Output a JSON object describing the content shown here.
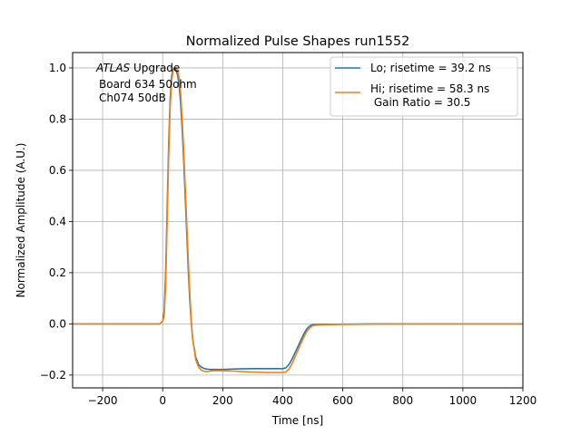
{
  "chart_data": {
    "type": "line",
    "title": "Normalized Pulse Shapes run1552",
    "xlabel": "Time [ns]",
    "ylabel": "Normalized Amplitude (A.U.)",
    "xlim": [
      -300,
      1200
    ],
    "ylim": [
      -0.25,
      1.06
    ],
    "xticks": [
      -200,
      0,
      200,
      400,
      600,
      800,
      1000,
      1200
    ],
    "xtick_labels": [
      "−200",
      "0",
      "200",
      "400",
      "600",
      "800",
      "1000",
      "1200"
    ],
    "yticks": [
      -0.2,
      0.0,
      0.2,
      0.4,
      0.6,
      0.8,
      1.0
    ],
    "ytick_labels": [
      "−0.2",
      "0.0",
      "0.2",
      "0.4",
      "0.6",
      "0.8",
      "1.0"
    ],
    "grid": true,
    "legend_position": "top-right",
    "annotation": {
      "atlas": "ATLAS",
      "upgrade": " Upgrade",
      "line2": "Board 634 50ohm",
      "line3": "Ch074 50dB"
    },
    "series": [
      {
        "name": "Lo; risetime = 39.2 ns",
        "color": "#1f77b4",
        "x": [
          -300,
          -10,
          0,
          5,
          10,
          15,
          20,
          25,
          30,
          35,
          40,
          45,
          50,
          55,
          60,
          65,
          70,
          75,
          80,
          85,
          90,
          95,
          100,
          110,
          120,
          130,
          140,
          150,
          160,
          175,
          200,
          250,
          300,
          350,
          400,
          410,
          420,
          430,
          440,
          450,
          460,
          470,
          480,
          490,
          500,
          520,
          550,
          600,
          700,
          800,
          1000,
          1200
        ],
        "y": [
          0.0,
          0.0,
          0.01,
          0.05,
          0.2,
          0.45,
          0.7,
          0.88,
          0.97,
          0.995,
          1.0,
          0.99,
          0.97,
          0.93,
          0.86,
          0.76,
          0.64,
          0.5,
          0.36,
          0.22,
          0.1,
          0.01,
          -0.06,
          -0.13,
          -0.16,
          -0.17,
          -0.175,
          -0.177,
          -0.178,
          -0.178,
          -0.178,
          -0.176,
          -0.175,
          -0.175,
          -0.175,
          -0.172,
          -0.16,
          -0.14,
          -0.115,
          -0.09,
          -0.065,
          -0.04,
          -0.02,
          -0.008,
          -0.003,
          -0.002,
          -0.002,
          -0.001,
          0.0,
          0.0,
          0.0,
          0.0
        ]
      },
      {
        "name": "Hi; risetime = 58.3 ns\n Gain Ratio = 30.5",
        "color": "#ff7f0e",
        "x": [
          -300,
          -10,
          0,
          5,
          10,
          15,
          20,
          25,
          30,
          35,
          40,
          45,
          50,
          55,
          60,
          65,
          70,
          75,
          80,
          85,
          90,
          95,
          100,
          110,
          120,
          130,
          140,
          150,
          160,
          175,
          200,
          250,
          300,
          350,
          400,
          410,
          420,
          430,
          440,
          450,
          460,
          470,
          480,
          490,
          500,
          520,
          550,
          600,
          700,
          800,
          1000,
          1200
        ],
        "y": [
          0.0,
          0.0,
          0.01,
          0.03,
          0.15,
          0.4,
          0.65,
          0.85,
          0.95,
          0.99,
          1.0,
          1.0,
          0.99,
          0.96,
          0.9,
          0.8,
          0.68,
          0.54,
          0.4,
          0.26,
          0.13,
          0.02,
          -0.06,
          -0.14,
          -0.17,
          -0.182,
          -0.186,
          -0.186,
          -0.184,
          -0.183,
          -0.183,
          -0.185,
          -0.188,
          -0.19,
          -0.19,
          -0.188,
          -0.178,
          -0.158,
          -0.132,
          -0.105,
          -0.078,
          -0.052,
          -0.03,
          -0.015,
          -0.007,
          -0.004,
          -0.003,
          -0.002,
          -0.001,
          0.0,
          0.0,
          0.0
        ]
      }
    ]
  }
}
